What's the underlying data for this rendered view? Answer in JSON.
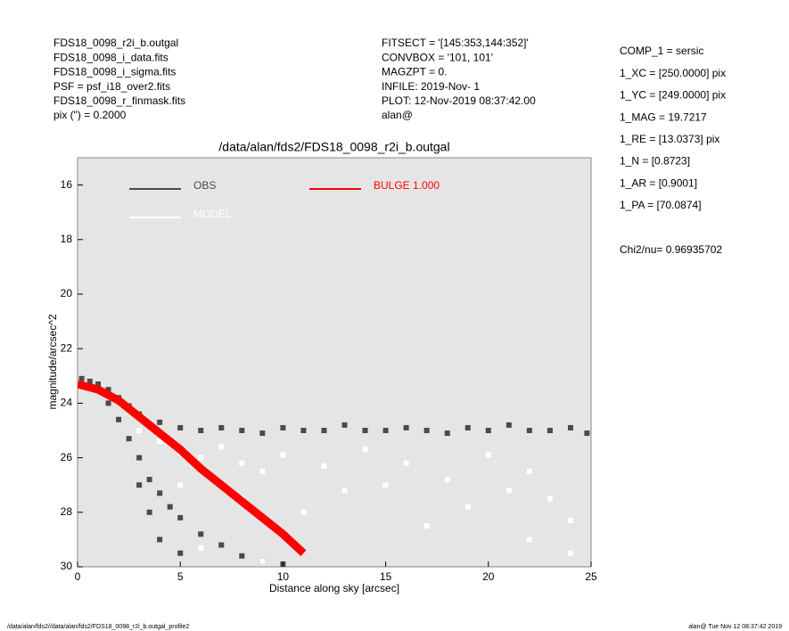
{
  "header": {
    "left": [
      "FDS18_0098_r2i_b.outgal",
      "FDS18_0098_i_data.fits",
      "FDS18_0098_i_sigma.fits",
      "PSF     = psf_i18_over2.fits",
      "FDS18_0098_r_finmask.fits",
      "pix (\") =  0.2000"
    ],
    "middle": [
      "FITSECT = '[145:353,144:352]'",
      "CONVBOX = '101, 101'",
      "MAGZPT  =              0.",
      "INFILE: 2019-Nov- 1",
      "PLOT: 12-Nov-2019 08:37:42.00",
      "alan@"
    ],
    "right": [
      "COMP_1  = sersic",
      "1_XC    = [250.0000] pix",
      "1_YC    = [249.0000] pix",
      "1_MAG   = 19.7217",
      "1_RE    = [13.0373] pix",
      "1_N     = [0.8723]",
      "1_AR    = [0.9001]",
      "1_PA    = [70.0874]"
    ],
    "chi2": "Chi2/nu=      0.96935702"
  },
  "footer": {
    "left": "/data/alan/fds2//data/alan/fds2/FDS18_0098_r2i_b.outgal_profile2",
    "right": "alan@  Tue Nov 12 08:37:42 2019"
  },
  "chart_data": {
    "type": "scatter",
    "title": "/data/alan/fds2/FDS18_0098_r2i_b.outgal",
    "x_label": "Distance along sky [arcsec]",
    "y_label": "magnitude/arcsec^2",
    "xlim": [
      0,
      25
    ],
    "xticks": [
      0,
      5,
      10,
      15,
      20,
      25
    ],
    "ylim": [
      30,
      15
    ],
    "yticks": [
      16,
      18,
      20,
      22,
      24,
      26,
      28,
      30
    ],
    "background": "#e5e5e5",
    "series": [
      {
        "name": "OBS",
        "color": "#4a4a4a",
        "mode": "points",
        "x": [
          0.2,
          0.6,
          1.0,
          1.5,
          2.0,
          2.5,
          3.0,
          4,
          5,
          6,
          7,
          8,
          9,
          10,
          11,
          12,
          13,
          14,
          15,
          16,
          17,
          18,
          19,
          20,
          21,
          22,
          23,
          24,
          24.8,
          1.5,
          2.0,
          2.5,
          3.0,
          3.5,
          4.0,
          4.5,
          5,
          6,
          7,
          8,
          9,
          10,
          3,
          3.5,
          4,
          5
        ],
        "values": [
          23.1,
          23.2,
          23.3,
          23.5,
          23.8,
          24.1,
          24.4,
          24.7,
          24.9,
          25.0,
          24.9,
          25.0,
          25.1,
          24.9,
          25.0,
          25.0,
          24.8,
          25.0,
          25.0,
          24.9,
          25.0,
          25.1,
          24.9,
          25.0,
          24.8,
          25.0,
          25.0,
          24.9,
          25.1,
          24.0,
          24.6,
          25.3,
          26.0,
          26.8,
          27.3,
          27.8,
          28.2,
          28.8,
          29.2,
          29.6,
          29.8,
          29.9,
          27.0,
          28.0,
          29.0,
          29.5
        ]
      },
      {
        "name": "MODEL",
        "color": "#ffffff",
        "mode": "points",
        "x": [
          3,
          4,
          5,
          6,
          7,
          8,
          9,
          10,
          12,
          14,
          15,
          16,
          18,
          20,
          21,
          22,
          23,
          24,
          5,
          8,
          11,
          13,
          17,
          19,
          22,
          24,
          6,
          9
        ],
        "values": [
          25.0,
          25.4,
          25.8,
          26.0,
          25.6,
          26.2,
          26.5,
          25.9,
          26.3,
          25.7,
          27.0,
          26.2,
          26.8,
          25.9,
          27.2,
          26.5,
          27.5,
          28.3,
          27.0,
          27.5,
          28.0,
          27.2,
          28.5,
          27.8,
          29.0,
          29.5,
          29.3,
          29.8
        ]
      },
      {
        "name": "BULGE  1.000",
        "color": "#ff0000",
        "mode": "line",
        "x": [
          0,
          1,
          2,
          3,
          4,
          5,
          6,
          7,
          8,
          9,
          10,
          11
        ],
        "values": [
          23.3,
          23.5,
          23.9,
          24.5,
          25.1,
          25.7,
          26.4,
          27.0,
          27.6,
          28.2,
          28.8,
          29.5
        ]
      }
    ]
  }
}
